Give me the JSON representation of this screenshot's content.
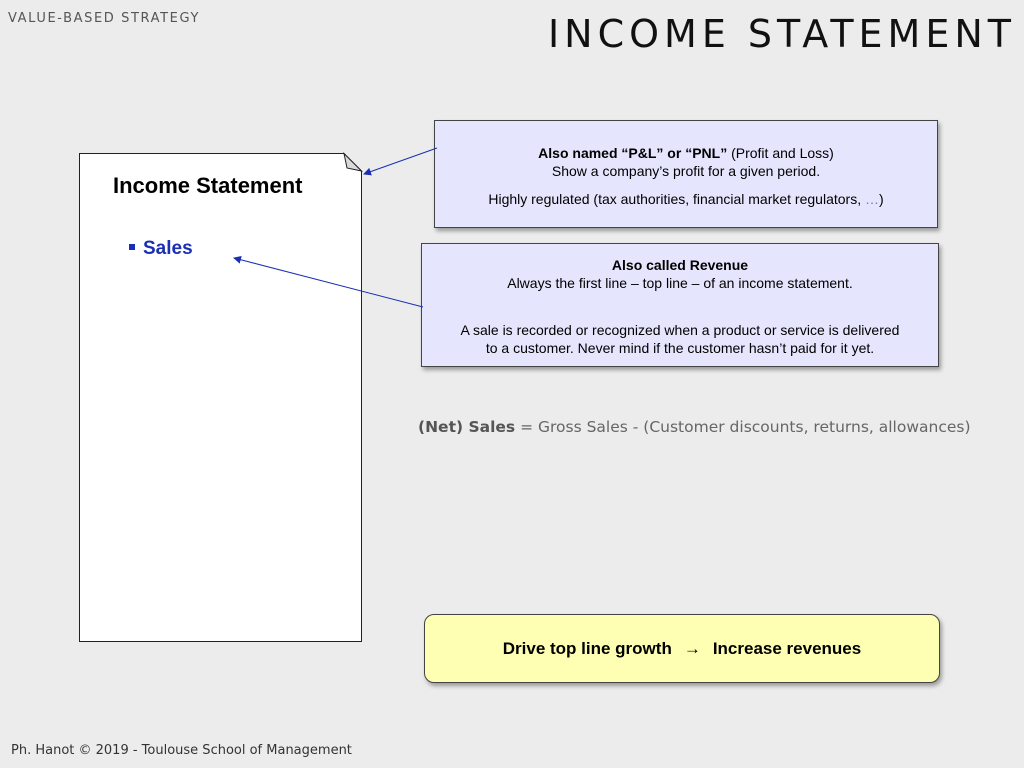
{
  "header": {
    "kicker": "VALUE-BASED STRATEGY",
    "title": "INCOME STATEMENT"
  },
  "document": {
    "title": "Income Statement",
    "items": [
      "Sales"
    ]
  },
  "callout_pnl": {
    "line1_bold": "Also named “P&L” or “PNL”",
    "line1_rest": " (Profit and Loss)",
    "line2": "Show a company’s profit  for a given period.",
    "line3": "Highly regulated (tax authorities, financial market regulators, ",
    "line3_ellipsis": "…",
    "line3_end": ")"
  },
  "callout_revenue": {
    "line1_bold": "Also called Revenue",
    "line2": "Always the first line – top line – of an income statement.",
    "line3": "A sale is recorded or recognized when a product or service is delivered",
    "line4": "to a customer. Never mind if the customer hasn’t paid for it yet."
  },
  "formula": {
    "term_bold": "(Net) Sales",
    "rest": " = Gross Sales - (Customer discounts, returns, allowances)"
  },
  "highlight": {
    "left": "Drive top line growth",
    "arrow": "→",
    "right": "Increase revenues"
  },
  "footer": {
    "text": "Ph. Hanot © 2019  -  Toulouse School of Management"
  },
  "colors": {
    "background": "#ececec",
    "accent_blue": "#1a2fb5",
    "callout_fill": "#e5e6fd",
    "highlight_fill": "#ffffb3"
  }
}
